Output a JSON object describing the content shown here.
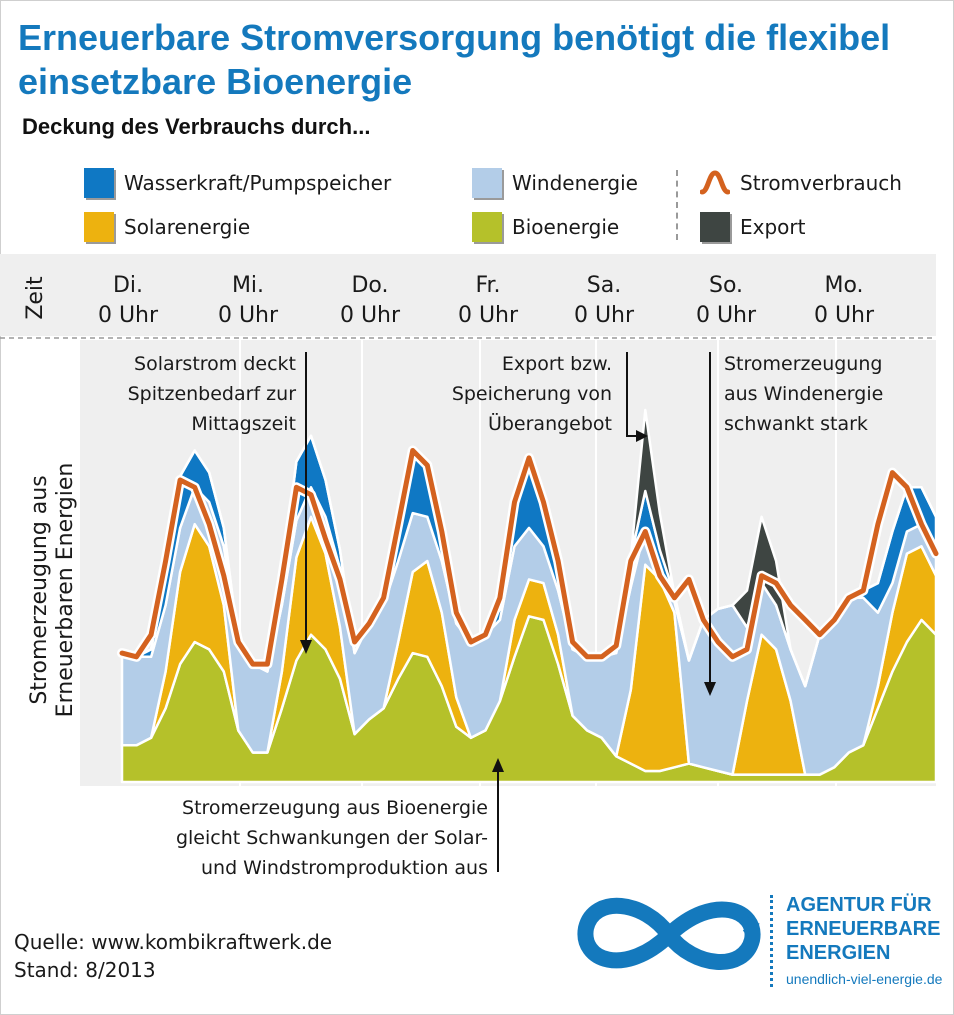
{
  "title": "Erneuerbare Stromversorgung benötigt die flexibel einsetzbare Bioenergie",
  "subtitle": "Deckung des Verbrauchs durch...",
  "legend": [
    {
      "label": "Wasserkraft/Pumpspeicher",
      "color": "#0f78c4"
    },
    {
      "label": "Windenergie",
      "color": "#b3cde8"
    },
    {
      "label": "Stromverbrauch",
      "color": "#d4621f"
    },
    {
      "label": "Solarenergie",
      "color": "#edb20f"
    },
    {
      "label": "Bioenergie",
      "color": "#b5c12a"
    },
    {
      "label": "Export",
      "color": "#3e4542"
    }
  ],
  "axis": {
    "time_label": "Zeit",
    "y_label_line1": "Stromerzeugung aus",
    "y_label_line2": "Erneuerbaren Energien",
    "days": [
      {
        "day": "Di.",
        "hour": "0 Uhr"
      },
      {
        "day": "Mi.",
        "hour": "0 Uhr"
      },
      {
        "day": "Do.",
        "hour": "0 Uhr"
      },
      {
        "day": "Fr.",
        "hour": "0 Uhr"
      },
      {
        "day": "Sa.",
        "hour": "0 Uhr"
      },
      {
        "day": "So.",
        "hour": "0 Uhr"
      },
      {
        "day": "Mo.",
        "hour": "0 Uhr"
      }
    ]
  },
  "annotations": {
    "solar": [
      "Solarstrom deckt",
      "Spitzenbedarf zur",
      "Mittagszeit"
    ],
    "export": [
      "Export bzw.",
      "Speicherung von",
      "Überangebot"
    ],
    "wind": [
      "Stromerzeugung",
      "aus Windenergie",
      "schwankt stark"
    ],
    "bio": [
      "Stromerzeugung aus Bioenergie",
      "gleicht Schwankungen der Solar-",
      "und  Windstromproduktion aus"
    ]
  },
  "source_line": "Quelle: www.kombikraftwerk.de",
  "stand_line": "Stand: 8/2013",
  "brand": {
    "line1": "AGENTUR FÜR",
    "line2": "ERNEUERBARE",
    "line3": "ENERGIEN",
    "url": "unendlich-viel-energie.de"
  },
  "chart_data": {
    "type": "area",
    "x_unit": "hours since Di. 0 Uhr",
    "x": [
      0,
      3,
      6,
      9,
      12,
      15,
      18,
      21,
      24,
      27,
      30,
      33,
      36,
      39,
      42,
      45,
      48,
      51,
      54,
      57,
      60,
      63,
      66,
      69,
      72,
      75,
      78,
      81,
      84,
      87,
      90,
      93,
      96,
      99,
      102,
      105,
      108,
      111,
      114,
      117,
      120,
      123,
      126,
      129,
      132,
      135,
      138,
      141,
      144,
      147,
      150,
      153,
      156,
      159,
      162,
      165,
      168
    ],
    "series": [
      {
        "name": "Bioenergie",
        "values": [
          10,
          10,
          12,
          20,
          32,
          38,
          36,
          30,
          14,
          8,
          8,
          20,
          33,
          40,
          36,
          28,
          13,
          17,
          20,
          28,
          35,
          34,
          26,
          15,
          12,
          14,
          22,
          34,
          45,
          44,
          32,
          18,
          14,
          12,
          7,
          5,
          3,
          3,
          4,
          5,
          4,
          3,
          2,
          2,
          2,
          2,
          2,
          2,
          2,
          4,
          8,
          10,
          20,
          30,
          38,
          44,
          40
        ]
      },
      {
        "name": "Solarenergie",
        "values": [
          0,
          0,
          0,
          10,
          25,
          32,
          28,
          18,
          0,
          0,
          0,
          10,
          28,
          32,
          26,
          14,
          0,
          0,
          0,
          10,
          22,
          26,
          20,
          8,
          0,
          0,
          0,
          10,
          10,
          10,
          8,
          0,
          0,
          0,
          0,
          20,
          56,
          52,
          42,
          0,
          0,
          0,
          0,
          20,
          38,
          34,
          20,
          0,
          0,
          0,
          0,
          0,
          6,
          16,
          24,
          20,
          16
        ]
      },
      {
        "name": "Windenergie",
        "values": [
          25,
          24,
          22,
          18,
          12,
          10,
          12,
          16,
          24,
          24,
          22,
          18,
          10,
          8,
          10,
          16,
          22,
          26,
          28,
          22,
          16,
          12,
          14,
          20,
          26,
          26,
          22,
          20,
          14,
          10,
          12,
          18,
          20,
          22,
          28,
          28,
          10,
          2,
          3,
          28,
          40,
          44,
          46,
          20,
          14,
          12,
          14,
          24,
          38,
          40,
          42,
          40,
          20,
          8,
          6,
          6,
          8
        ]
      },
      {
        "name": "Wasserkraft/Pumpspeicher",
        "values": [
          0,
          0,
          2,
          8,
          14,
          10,
          8,
          5,
          0,
          0,
          0,
          8,
          16,
          14,
          10,
          5,
          0,
          0,
          2,
          10,
          18,
          14,
          8,
          3,
          0,
          0,
          3,
          12,
          18,
          14,
          8,
          2,
          0,
          0,
          2,
          8,
          10,
          6,
          2,
          0,
          0,
          0,
          0,
          0,
          0,
          0,
          0,
          0,
          0,
          0,
          0,
          2,
          8,
          14,
          12,
          10,
          8
        ]
      },
      {
        "name": "Export",
        "values": [
          0,
          0,
          0,
          0,
          0,
          0,
          0,
          0,
          0,
          0,
          0,
          0,
          0,
          0,
          0,
          0,
          0,
          0,
          0,
          0,
          0,
          0,
          0,
          0,
          0,
          0,
          0,
          0,
          0,
          0,
          0,
          0,
          0,
          0,
          0,
          0,
          22,
          10,
          0,
          0,
          0,
          0,
          0,
          10,
          18,
          12,
          0,
          0,
          0,
          0,
          0,
          0,
          0,
          0,
          0,
          0,
          0
        ]
      },
      {
        "name": "Stromverbrauch",
        "values": [
          35,
          34,
          40,
          60,
          82,
          80,
          70,
          56,
          38,
          32,
          32,
          55,
          80,
          78,
          66,
          55,
          38,
          43,
          50,
          70,
          90,
          86,
          68,
          46,
          38,
          40,
          50,
          76,
          88,
          76,
          60,
          38,
          34,
          34,
          37,
          60,
          68,
          56,
          50,
          55,
          44,
          38,
          34,
          36,
          56,
          54,
          48,
          44,
          40,
          44,
          50,
          52,
          70,
          84,
          80,
          70,
          62
        ]
      }
    ],
    "ylim": [
      0,
      120
    ],
    "grid": true
  }
}
